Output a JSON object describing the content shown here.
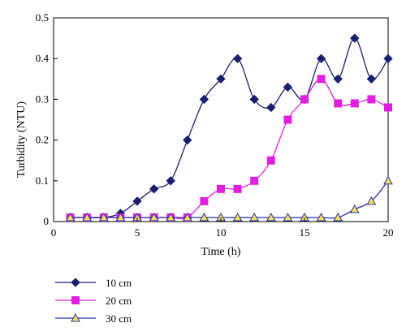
{
  "chart_data": {
    "type": "line",
    "xlabel": "Time (h)",
    "ylabel": "Turbidity (NTU)",
    "xlim": [
      0,
      20
    ],
    "ylim": [
      0,
      0.5
    ],
    "xticks": [
      "0",
      "5",
      "10",
      "15",
      "20"
    ],
    "yticks": [
      "0",
      "0.1",
      "0.2",
      "0.3",
      "0.4",
      "0.5"
    ],
    "legend_position": "bottom-left, below plot",
    "grid": false,
    "smooth_lines": true,
    "series": [
      {
        "name": "10 cm",
        "color": "#1a1f6e",
        "marker": "diamond",
        "x": [
          1,
          2,
          3,
          4,
          5,
          6,
          7,
          8,
          9,
          10,
          11,
          12,
          13,
          14,
          15,
          16,
          17,
          18,
          19,
          20
        ],
        "y": [
          0.01,
          0.01,
          0.01,
          0.02,
          0.05,
          0.08,
          0.1,
          0.2,
          0.3,
          0.35,
          0.4,
          0.3,
          0.28,
          0.33,
          0.3,
          0.4,
          0.35,
          0.45,
          0.35,
          0.4
        ]
      },
      {
        "name": "20 cm",
        "color": "#e020e0",
        "marker": "square",
        "x": [
          1,
          2,
          3,
          4,
          5,
          6,
          7,
          8,
          9,
          10,
          11,
          12,
          13,
          14,
          15,
          16,
          17,
          18,
          19,
          20
        ],
        "y": [
          0.01,
          0.01,
          0.01,
          0.01,
          0.01,
          0.01,
          0.01,
          0.01,
          0.05,
          0.08,
          0.08,
          0.1,
          0.15,
          0.25,
          0.3,
          0.35,
          0.29,
          0.29,
          0.3,
          0.28
        ]
      },
      {
        "name": "30 cm",
        "color": "#2a2fa8",
        "marker": "triangle",
        "marker_fill": "#f0e060",
        "x": [
          1,
          2,
          3,
          4,
          5,
          6,
          7,
          8,
          9,
          10,
          11,
          12,
          13,
          14,
          15,
          16,
          17,
          18,
          19,
          20
        ],
        "y": [
          0.01,
          0.01,
          0.01,
          0.01,
          0.01,
          0.01,
          0.01,
          0.01,
          0.01,
          0.01,
          0.01,
          0.01,
          0.01,
          0.01,
          0.01,
          0.01,
          0.01,
          0.03,
          0.05,
          0.1
        ]
      }
    ]
  }
}
